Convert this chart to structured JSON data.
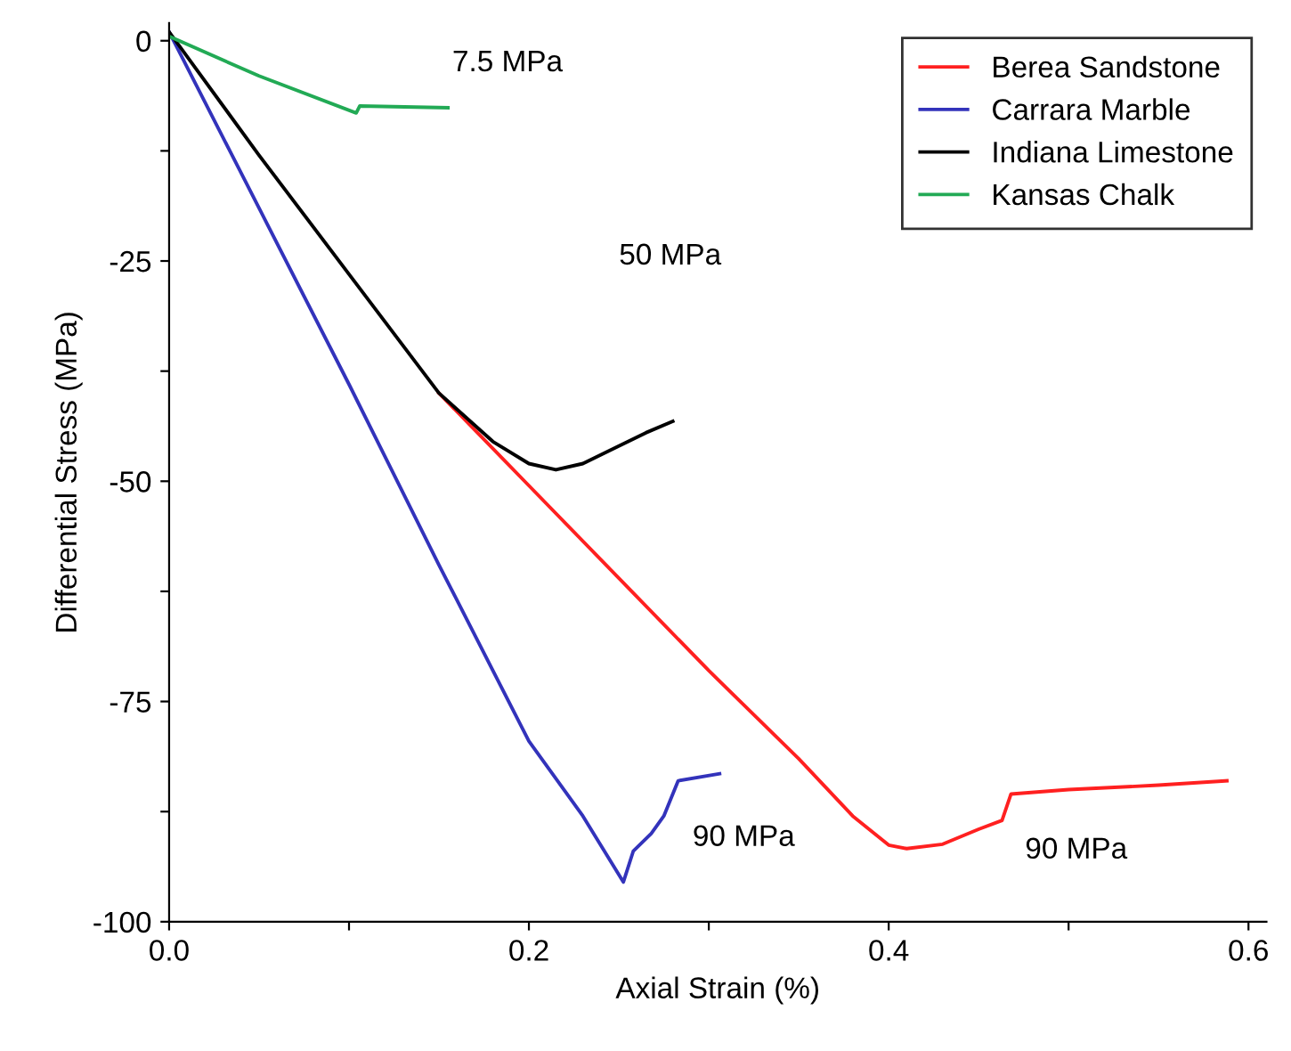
{
  "chart_data": {
    "type": "line",
    "xlabel": "Axial Strain (%)",
    "ylabel": "Differential Stress (MPa)",
    "xlim": [
      0,
      0.61
    ],
    "ylim": [
      -100,
      2
    ],
    "xticks": [
      {
        "value": 0,
        "label": "0.0"
      },
      {
        "value": 0.1,
        "label": null
      },
      {
        "value": 0.2,
        "label": "0.2"
      },
      {
        "value": 0.3,
        "label": null
      },
      {
        "value": 0.4,
        "label": "0.4"
      },
      {
        "value": 0.5,
        "label": null
      },
      {
        "value": 0.6,
        "label": "0.6"
      }
    ],
    "yticks": [
      0,
      {
        "value": -12.5,
        "label": null
      },
      {
        "value": -25,
        "label": "-25"
      },
      {
        "value": -37.5,
        "label": null
      },
      {
        "value": -50,
        "label": "-50"
      },
      {
        "value": -62.5,
        "label": null
      },
      {
        "value": -75,
        "label": "-75"
      },
      {
        "value": -87.5,
        "label": null
      },
      {
        "value": -100,
        "label": "-100"
      }
    ],
    "grid": false,
    "legend": "top right",
    "marker": "none",
    "line_style": "solid",
    "series": [
      {
        "name": "Berea Sandstone",
        "color": "#ff2020",
        "x": [
          0.15,
          0.2,
          0.25,
          0.3,
          0.35,
          0.38,
          0.4,
          0.41,
          0.43,
          0.45,
          0.463,
          0.468,
          0.5,
          0.55,
          0.588
        ],
        "values": [
          -40,
          -50.5,
          -61,
          -71.5,
          -81.5,
          -88,
          -91.3,
          -91.7,
          -91.2,
          -89.5,
          -88.5,
          -85.5,
          -85,
          -84.5,
          -84
        ]
      },
      {
        "name": "Carrara Marble",
        "color": "#3333bb",
        "x": [
          0,
          0.05,
          0.1,
          0.15,
          0.2,
          0.23,
          0.2525,
          0.258,
          0.268,
          0.275,
          0.283,
          0.306
        ],
        "values": [
          1,
          -19,
          -39,
          -59.5,
          -79.5,
          -88,
          -95.5,
          -92,
          -90,
          -88,
          -84,
          -83.2
        ]
      },
      {
        "name": "Indiana Limestone",
        "color": "#000000",
        "x": [
          0,
          0.05,
          0.1,
          0.15,
          0.18,
          0.2,
          0.215,
          0.23,
          0.25,
          0.265,
          0.28
        ],
        "values": [
          1,
          -13,
          -26.5,
          -40,
          -45.5,
          -48,
          -48.7,
          -48,
          -46,
          -44.5,
          -43.2
        ]
      },
      {
        "name": "Kansas Chalk",
        "color": "#22aa55",
        "x": [
          0,
          0.05,
          0.104,
          0.106,
          0.155
        ],
        "values": [
          0.5,
          -4,
          -8.2,
          -7.4,
          -7.6
        ]
      }
    ],
    "annotations": [
      "7.5 MPa",
      "50 MPa",
      "90 MPa",
      "90 MPa"
    ]
  }
}
